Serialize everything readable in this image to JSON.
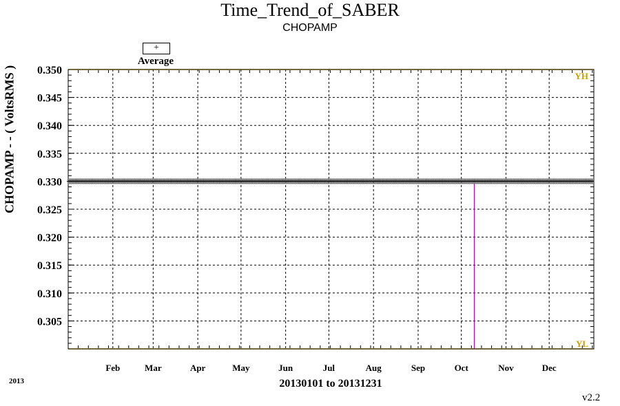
{
  "title": "Time_Trend_of_SABER",
  "subtitle": "CHOPAMP",
  "legend": {
    "symbol": "+",
    "label": "Average"
  },
  "year_label": "2013",
  "version": "v2.2",
  "colors": {
    "limit": "#c8a000",
    "event": "#c000c0",
    "data": "#000000"
  },
  "chart_data": {
    "type": "scatter",
    "title": "Time_Trend_of_SABER",
    "subtitle": "CHOPAMP",
    "xlabel": "20130101 to 20131231",
    "ylabel": "CHOPAMP  - - ( VoltsRMS )",
    "x_range": [
      "2013-01-01",
      "2013-12-31"
    ],
    "ylim": [
      0.3,
      0.35
    ],
    "y_ticks": [
      "0.350",
      "0.345",
      "0.340",
      "0.335",
      "0.330",
      "0.325",
      "0.320",
      "0.315",
      "0.310",
      "0.305"
    ],
    "y_tick_values": [
      0.35,
      0.345,
      0.34,
      0.335,
      0.33,
      0.325,
      0.32,
      0.315,
      0.31,
      0.305
    ],
    "x_ticks": [
      "Feb",
      "Mar",
      "Apr",
      "May",
      "Jun",
      "Jul",
      "Aug",
      "Sep",
      "Oct",
      "Nov",
      "Dec"
    ],
    "x_tick_days": [
      31,
      59,
      90,
      120,
      151,
      181,
      212,
      243,
      273,
      304,
      334
    ],
    "grid": true,
    "series": [
      {
        "name": "Average",
        "marker": "+",
        "value": 0.33,
        "start_day": 0,
        "end_day": 364,
        "count": 365
      }
    ],
    "limits": [
      {
        "label": "YH",
        "value": 0.35
      },
      {
        "label": "YL",
        "value": 0.3
      }
    ],
    "event_line_day": 282
  }
}
